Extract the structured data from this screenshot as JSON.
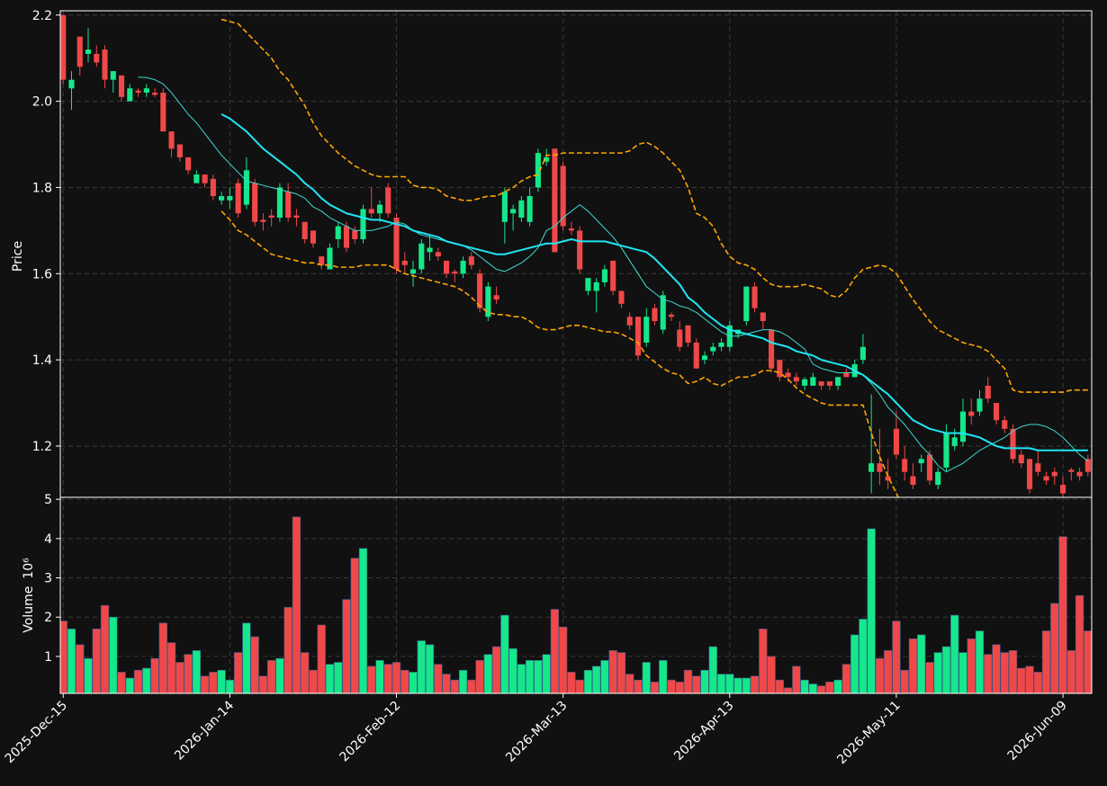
{
  "chart_data": {
    "type": "candlestick",
    "ylabel": "Price",
    "ylim": [
      1.081,
      2.21
    ],
    "yticks": [
      1.2,
      1.4,
      1.6,
      1.8,
      {
        "value": 2,
        "label": "2.0"
      },
      2.2
    ],
    "grid": true,
    "up_color": "#14e88a",
    "down_color": "#f04848",
    "categories": [
      "2025-Dec-15",
      null,
      null,
      null,
      null,
      null,
      null,
      null,
      null,
      null,
      null,
      null,
      null,
      null,
      null,
      null,
      null,
      null,
      null,
      null,
      "2026-Jan-14",
      null,
      null,
      null,
      null,
      null,
      null,
      null,
      null,
      null,
      null,
      null,
      null,
      null,
      null,
      null,
      null,
      null,
      null,
      null,
      "2026-Feb-12",
      null,
      null,
      null,
      null,
      null,
      null,
      null,
      null,
      null,
      null,
      null,
      null,
      null,
      null,
      null,
      null,
      null,
      null,
      null,
      "2026-Mar-13",
      null,
      null,
      null,
      null,
      null,
      null,
      null,
      null,
      null,
      null,
      null,
      null,
      null,
      null,
      null,
      null,
      null,
      null,
      null,
      "2026-Apr-13",
      null,
      null,
      null,
      null,
      null,
      null,
      null,
      null,
      null,
      null,
      null,
      null,
      null,
      null,
      null,
      null,
      null,
      null,
      null,
      "2026-May-11",
      null,
      null,
      null,
      null,
      null,
      null,
      null,
      null,
      null,
      null,
      null,
      null,
      null,
      null,
      null,
      null,
      null,
      null,
      null,
      "2026-Jun-09",
      null,
      null,
      null
    ],
    "open": [
      2.2,
      2.03,
      2.15,
      2.11,
      2.11,
      2.12,
      2.05,
      2.06,
      2.0,
      2.025,
      2.02,
      2.02,
      2.02,
      1.93,
      1.9,
      1.87,
      1.81,
      1.83,
      1.82,
      1.77,
      1.77,
      1.81,
      1.76,
      1.81,
      1.725,
      1.735,
      1.73,
      1.79,
      1.735,
      1.72,
      1.7,
      1.64,
      1.61,
      1.68,
      1.71,
      1.7,
      1.68,
      1.75,
      1.74,
      1.8,
      1.73,
      1.63,
      1.6,
      1.61,
      1.65,
      1.65,
      1.63,
      1.605,
      1.6,
      1.64,
      1.6,
      1.5,
      1.55,
      1.72,
      1.74,
      1.73,
      1.72,
      1.8,
      1.86,
      1.89,
      1.85,
      1.705,
      1.7,
      1.56,
      1.56,
      1.58,
      1.63,
      1.56,
      1.5,
      1.5,
      1.44,
      1.52,
      1.47,
      1.505,
      1.47,
      1.48,
      1.44,
      1.4,
      1.42,
      1.43,
      1.43,
      1.46,
      1.49,
      1.57,
      1.51,
      1.47,
      1.4,
      1.37,
      1.36,
      1.34,
      1.34,
      1.35,
      1.35,
      1.34,
      1.37,
      1.36,
      1.4,
      1.14,
      1.16,
      1.13,
      1.24,
      1.17,
      1.13,
      1.16,
      1.18,
      1.11,
      1.15,
      1.2,
      1.21,
      1.28,
      1.28,
      1.34,
      1.3,
      1.26,
      1.24,
      1.18,
      1.17,
      1.16,
      1.13,
      1.14,
      1.11,
      1.145,
      1.14,
      1.17
    ],
    "high": [
      2.2,
      2.07,
      2.15,
      2.17,
      2.13,
      2.13,
      2.07,
      2.06,
      2.04,
      2.03,
      2.04,
      2.03,
      2.03,
      1.93,
      1.9,
      1.87,
      1.84,
      1.83,
      1.83,
      1.79,
      1.8,
      1.82,
      1.87,
      1.82,
      1.74,
      1.75,
      1.81,
      1.81,
      1.75,
      1.72,
      1.7,
      1.64,
      1.67,
      1.72,
      1.72,
      1.71,
      1.76,
      1.8,
      1.77,
      1.81,
      1.74,
      1.65,
      1.63,
      1.68,
      1.69,
      1.66,
      1.63,
      1.61,
      1.64,
      1.65,
      1.61,
      1.58,
      1.57,
      1.8,
      1.76,
      1.78,
      1.8,
      1.89,
      1.89,
      1.89,
      1.86,
      1.72,
      1.71,
      1.59,
      1.59,
      1.62,
      1.63,
      1.56,
      1.51,
      1.5,
      1.52,
      1.53,
      1.56,
      1.51,
      1.49,
      1.48,
      1.45,
      1.42,
      1.44,
      1.45,
      1.49,
      1.47,
      1.57,
      1.58,
      1.51,
      1.47,
      1.4,
      1.38,
      1.37,
      1.36,
      1.37,
      1.35,
      1.35,
      1.36,
      1.38,
      1.4,
      1.46,
      1.32,
      1.24,
      1.17,
      1.28,
      1.2,
      1.16,
      1.18,
      1.19,
      1.15,
      1.25,
      1.24,
      1.31,
      1.31,
      1.33,
      1.36,
      1.3,
      1.27,
      1.25,
      1.19,
      1.17,
      1.19,
      1.14,
      1.15,
      1.13,
      1.15,
      1.15,
      1.18
    ],
    "low": [
      2.04,
      1.98,
      2.06,
      2.09,
      2.08,
      2.03,
      2.02,
      2.0,
      2.0,
      2.01,
      2.01,
      2.01,
      1.93,
      1.87,
      1.86,
      1.83,
      1.81,
      1.8,
      1.77,
      1.76,
      1.75,
      1.73,
      1.75,
      1.71,
      1.7,
      1.71,
      1.72,
      1.72,
      1.71,
      1.67,
      1.66,
      1.61,
      1.61,
      1.66,
      1.65,
      1.67,
      1.67,
      1.73,
      1.72,
      1.73,
      1.6,
      1.6,
      1.57,
      1.6,
      1.63,
      1.63,
      1.59,
      1.58,
      1.59,
      1.61,
      1.51,
      1.49,
      1.53,
      1.67,
      1.7,
      1.72,
      1.71,
      1.79,
      1.85,
      1.65,
      1.7,
      1.69,
      1.6,
      1.55,
      1.51,
      1.57,
      1.55,
      1.52,
      1.47,
      1.4,
      1.43,
      1.48,
      1.46,
      1.49,
      1.42,
      1.43,
      1.38,
      1.39,
      1.41,
      1.42,
      1.42,
      1.45,
      1.48,
      1.51,
      1.47,
      1.37,
      1.35,
      1.35,
      1.34,
      1.33,
      1.34,
      1.33,
      1.33,
      1.33,
      1.36,
      1.36,
      1.39,
      1.09,
      1.11,
      1.1,
      1.17,
      1.12,
      1.1,
      1.14,
      1.11,
      1.1,
      1.14,
      1.19,
      1.2,
      1.25,
      1.27,
      1.3,
      1.25,
      1.23,
      1.16,
      1.15,
      1.09,
      1.13,
      1.11,
      1.11,
      1.08,
      1.12,
      1.12,
      1.13
    ],
    "close": [
      2.05,
      2.05,
      2.08,
      2.12,
      2.09,
      2.05,
      2.07,
      2.01,
      2.03,
      2.02,
      2.03,
      2.015,
      1.93,
      1.89,
      1.87,
      1.84,
      1.83,
      1.81,
      1.78,
      1.78,
      1.78,
      1.74,
      1.84,
      1.72,
      1.72,
      1.73,
      1.8,
      1.73,
      1.73,
      1.68,
      1.67,
      1.62,
      1.66,
      1.71,
      1.66,
      1.68,
      1.75,
      1.74,
      1.76,
      1.74,
      1.61,
      1.62,
      1.61,
      1.67,
      1.66,
      1.64,
      1.6,
      1.6,
      1.63,
      1.62,
      1.52,
      1.57,
      1.54,
      1.79,
      1.75,
      1.77,
      1.78,
      1.88,
      1.87,
      1.65,
      1.71,
      1.7,
      1.61,
      1.59,
      1.58,
      1.61,
      1.56,
      1.53,
      1.48,
      1.41,
      1.5,
      1.49,
      1.55,
      1.5,
      1.43,
      1.44,
      1.38,
      1.41,
      1.43,
      1.44,
      1.48,
      1.47,
      1.57,
      1.52,
      1.49,
      1.38,
      1.36,
      1.36,
      1.35,
      1.355,
      1.36,
      1.34,
      1.34,
      1.36,
      1.36,
      1.39,
      1.43,
      1.16,
      1.14,
      1.12,
      1.18,
      1.14,
      1.11,
      1.17,
      1.12,
      1.14,
      1.23,
      1.22,
      1.28,
      1.27,
      1.31,
      1.31,
      1.26,
      1.24,
      1.17,
      1.16,
      1.1,
      1.14,
      1.12,
      1.13,
      1.09,
      1.14,
      1.13,
      1.14
    ],
    "series": [
      {
        "color": "#3fd9d2",
        "linewidth": 1,
        "values": [
          null,
          null,
          null,
          null,
          null,
          null,
          null,
          null,
          null,
          2.056,
          2.055,
          2.05,
          2.04,
          2.02,
          1.995,
          1.97,
          1.95,
          1.925,
          1.9,
          1.875,
          1.855,
          1.835,
          1.815,
          1.81,
          1.805,
          1.8,
          1.795,
          1.79,
          1.785,
          1.775,
          1.755,
          1.745,
          1.73,
          1.72,
          1.71,
          1.7,
          1.7,
          1.7,
          1.705,
          1.71,
          1.72,
          1.715,
          1.7,
          1.69,
          1.685,
          1.68,
          1.675,
          1.67,
          1.665,
          1.655,
          1.64,
          1.625,
          1.61,
          1.605,
          1.615,
          1.625,
          1.64,
          1.66,
          1.7,
          1.71,
          1.73,
          1.745,
          1.76,
          1.745,
          1.725,
          1.705,
          1.685,
          1.66,
          1.63,
          1.6,
          1.57,
          1.555,
          1.54,
          1.535,
          1.525,
          1.52,
          1.51,
          1.495,
          1.48,
          1.465,
          1.455,
          1.455,
          1.46,
          1.465,
          1.47,
          1.47,
          1.465,
          1.455,
          1.44,
          1.425,
          1.39,
          1.38,
          1.375,
          1.37,
          1.37,
          1.37,
          1.365,
          1.345,
          1.32,
          1.29,
          1.27,
          1.25,
          1.225,
          1.2,
          1.18,
          1.155,
          1.14,
          1.15,
          1.16,
          1.175,
          1.19,
          1.2,
          1.21,
          1.22,
          1.235,
          1.245,
          1.25,
          1.25,
          1.245,
          1.235,
          1.22,
          1.2,
          1.18,
          1.165
        ]
      },
      {
        "color": "#1ee6f5",
        "linewidth": 2,
        "values": [
          null,
          null,
          null,
          null,
          null,
          null,
          null,
          null,
          null,
          null,
          null,
          null,
          null,
          null,
          null,
          null,
          null,
          null,
          null,
          1.97,
          1.96,
          1.945,
          1.93,
          1.91,
          1.89,
          1.875,
          1.86,
          1.845,
          1.83,
          1.81,
          1.795,
          1.775,
          1.76,
          1.75,
          1.74,
          1.735,
          1.73,
          1.725,
          1.725,
          1.72,
          1.715,
          1.71,
          1.7,
          1.695,
          1.69,
          1.685,
          1.675,
          1.67,
          1.665,
          1.66,
          1.655,
          1.65,
          1.645,
          1.645,
          1.65,
          1.655,
          1.66,
          1.665,
          1.67,
          1.67,
          1.675,
          1.68,
          1.675,
          1.675,
          1.675,
          1.675,
          1.67,
          1.665,
          1.66,
          1.655,
          1.65,
          1.635,
          1.615,
          1.595,
          1.575,
          1.545,
          1.53,
          1.51,
          1.495,
          1.48,
          1.47,
          1.465,
          1.46,
          1.455,
          1.45,
          1.44,
          1.435,
          1.43,
          1.42,
          1.415,
          1.41,
          1.4,
          1.395,
          1.39,
          1.385,
          1.375,
          1.365,
          1.35,
          1.335,
          1.32,
          1.3,
          1.28,
          1.26,
          1.25,
          1.24,
          1.235,
          1.23,
          1.23,
          1.23,
          1.225,
          1.22,
          1.21,
          1.2,
          1.195,
          1.195,
          1.195,
          1.195,
          1.19,
          1.19,
          1.19,
          1.19,
          1.19,
          1.19,
          1.19
        ]
      },
      {
        "color": "#ffa500",
        "linewidth": 1.6,
        "dashed": true,
        "values": [
          null,
          null,
          null,
          null,
          null,
          null,
          null,
          null,
          null,
          null,
          null,
          null,
          null,
          null,
          null,
          null,
          null,
          null,
          null,
          2.19,
          2.185,
          2.18,
          2.16,
          2.14,
          2.12,
          2.1,
          2.07,
          2.05,
          2.02,
          1.99,
          1.95,
          1.92,
          1.9,
          1.88,
          1.865,
          1.85,
          1.84,
          1.83,
          1.825,
          1.825,
          1.825,
          1.825,
          1.805,
          1.8,
          1.8,
          1.795,
          1.78,
          1.775,
          1.77,
          1.77,
          1.775,
          1.78,
          1.78,
          1.79,
          1.8,
          1.815,
          1.825,
          1.83,
          1.875,
          1.875,
          1.88,
          1.88,
          1.88,
          1.88,
          1.88,
          1.88,
          1.88,
          1.88,
          1.885,
          1.9,
          1.905,
          1.895,
          1.88,
          1.86,
          1.84,
          1.8,
          1.74,
          1.73,
          1.71,
          1.67,
          1.64,
          1.625,
          1.62,
          1.61,
          1.59,
          1.575,
          1.57,
          1.57,
          1.57,
          1.575,
          1.57,
          1.565,
          1.55,
          1.545,
          1.56,
          1.59,
          1.61,
          1.615,
          1.62,
          1.615,
          1.6,
          1.57,
          1.54,
          1.515,
          1.49,
          1.47,
          1.46,
          1.45,
          1.44,
          1.435,
          1.43,
          1.42,
          1.4,
          1.38,
          1.33,
          1.325,
          1.325,
          1.325,
          1.325,
          1.325,
          1.325,
          1.33,
          1.33,
          1.33
        ]
      },
      {
        "color": "#ffa500",
        "linewidth": 1.6,
        "dashed": true,
        "values": [
          null,
          null,
          null,
          null,
          null,
          null,
          null,
          null,
          null,
          null,
          null,
          null,
          null,
          null,
          null,
          null,
          null,
          null,
          null,
          1.745,
          1.725,
          1.7,
          1.69,
          1.675,
          1.66,
          1.645,
          1.64,
          1.635,
          1.63,
          1.625,
          1.625,
          1.62,
          1.62,
          1.615,
          1.615,
          1.615,
          1.62,
          1.62,
          1.62,
          1.62,
          1.61,
          1.6,
          1.595,
          1.59,
          1.585,
          1.58,
          1.575,
          1.57,
          1.56,
          1.545,
          1.525,
          1.51,
          1.505,
          1.505,
          1.5,
          1.5,
          1.49,
          1.475,
          1.47,
          1.47,
          1.475,
          1.48,
          1.48,
          1.475,
          1.47,
          1.465,
          1.465,
          1.46,
          1.45,
          1.44,
          1.41,
          1.395,
          1.38,
          1.37,
          1.365,
          1.345,
          1.35,
          1.36,
          1.345,
          1.34,
          1.35,
          1.36,
          1.36,
          1.365,
          1.375,
          1.375,
          1.37,
          1.355,
          1.335,
          1.32,
          1.31,
          1.3,
          1.295,
          1.295,
          1.295,
          1.295,
          1.295,
          1.23,
          1.175,
          1.13,
          1.09,
          1.05,
          null,
          null,
          null,
          null,
          null,
          null,
          null,
          null,
          null,
          null,
          null,
          null,
          null,
          null,
          null,
          null,
          null,
          null,
          null,
          null,
          null,
          null
        ]
      }
    ],
    "volume": {
      "ylabel": "Volume",
      "scale_label": "10⁶",
      "ylim": [
        0.06,
        5.05
      ],
      "yticks": [
        1,
        2,
        3,
        4,
        5
      ],
      "values": [
        1.9,
        1.7,
        1.3,
        0.95,
        1.7,
        2.3,
        2.0,
        0.6,
        0.45,
        0.65,
        0.7,
        0.95,
        1.85,
        1.35,
        0.85,
        1.05,
        1.15,
        0.5,
        0.6,
        0.65,
        0.4,
        1.1,
        1.85,
        1.5,
        0.5,
        0.9,
        0.95,
        2.25,
        4.55,
        1.1,
        0.65,
        1.8,
        0.8,
        0.85,
        2.45,
        3.5,
        3.75,
        0.75,
        0.9,
        0.8,
        0.85,
        0.65,
        0.6,
        1.4,
        1.3,
        0.8,
        0.55,
        0.4,
        0.65,
        0.4,
        0.9,
        1.05,
        1.25,
        2.05,
        1.2,
        0.8,
        0.9,
        0.9,
        1.05,
        2.2,
        1.75,
        0.6,
        0.4,
        0.65,
        0.75,
        0.9,
        1.15,
        1.1,
        0.55,
        0.4,
        0.85,
        0.35,
        0.9,
        0.4,
        0.35,
        0.65,
        0.5,
        0.65,
        1.25,
        0.55,
        0.55,
        0.45,
        0.45,
        0.5,
        1.7,
        1.0,
        0.4,
        0.2,
        0.75,
        0.4,
        0.3,
        0.25,
        0.35,
        0.4,
        0.8,
        1.55,
        1.95,
        4.25,
        0.95,
        1.15,
        1.9,
        0.65,
        1.45,
        1.55,
        0.85,
        1.1,
        1.25,
        2.05,
        1.1,
        1.45,
        1.65,
        1.05,
        1.3,
        1.1,
        1.15,
        0.7,
        0.75,
        0.6,
        1.65,
        2.35,
        4.05,
        1.15,
        2.55,
        1.65
      ]
    }
  }
}
